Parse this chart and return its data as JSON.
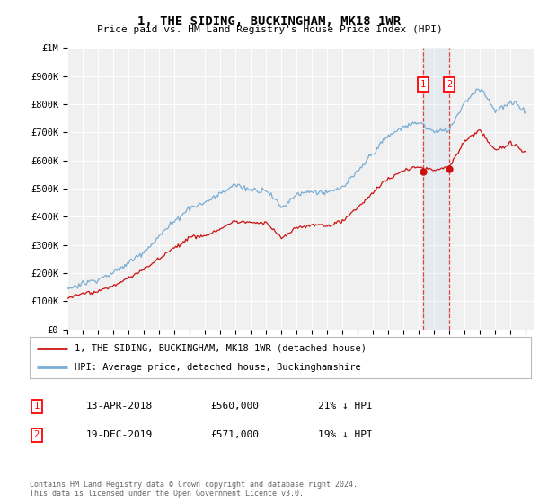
{
  "title": "1, THE SIDING, BUCKINGHAM, MK18 1WR",
  "subtitle": "Price paid vs. HM Land Registry's House Price Index (HPI)",
  "hpi_label": "HPI: Average price, detached house, Buckinghamshire",
  "property_label": "1, THE SIDING, BUCKINGHAM, MK18 1WR (detached house)",
  "footer": "Contains HM Land Registry data © Crown copyright and database right 2024.\nThis data is licensed under the Open Government Licence v3.0.",
  "transaction1_date": "13-APR-2018",
  "transaction1_price": "£560,000",
  "transaction1_hpi": "21% ↓ HPI",
  "transaction2_date": "19-DEC-2019",
  "transaction2_price": "£571,000",
  "transaction2_hpi": "19% ↓ HPI",
  "hpi_color": "#7aadd4",
  "property_color": "#cc1111",
  "vline_color": "#dd3333",
  "marker1_year": 2018.28,
  "marker2_year": 2019.97,
  "marker1_value": 560000,
  "marker2_value": 571000,
  "ylim": [
    0,
    1000000
  ],
  "xlim_start": 1995.0,
  "xlim_end": 2025.5,
  "background_color": "#ffffff",
  "plot_bg_color": "#f0f0f0",
  "grid_color": "#ffffff"
}
